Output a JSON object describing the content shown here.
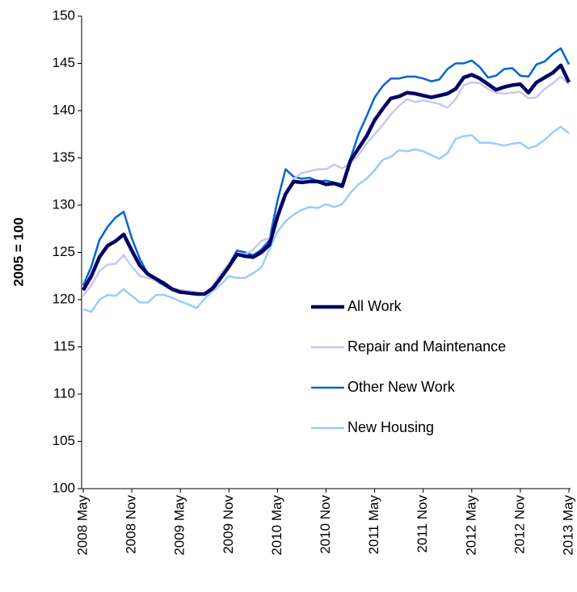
{
  "chart_data": {
    "type": "line",
    "y_label": "2005 = 100",
    "categories": [
      "2008 May",
      null,
      null,
      null,
      null,
      null,
      "2008 Nov",
      null,
      null,
      null,
      null,
      null,
      "2009 May",
      null,
      null,
      null,
      null,
      null,
      "2009 Nov",
      null,
      null,
      null,
      null,
      null,
      "2010 May",
      null,
      null,
      null,
      null,
      null,
      "2010 Nov",
      null,
      null,
      null,
      null,
      null,
      "2011 May",
      null,
      null,
      null,
      null,
      null,
      "2011 Nov",
      null,
      null,
      null,
      null,
      null,
      "2012 May",
      null,
      null,
      null,
      null,
      null,
      "2012 Nov",
      null,
      null,
      null,
      null,
      null,
      "2013 May"
    ],
    "series": [
      {
        "name": "All Work",
        "color": "#000066",
        "values": [
          121,
          122.5,
          124.5,
          125.7,
          126.2,
          126.9,
          125.2,
          123.6,
          122.7,
          122.2,
          121.7,
          121.1,
          120.8,
          120.7,
          120.6,
          120.6,
          121.2,
          122.3,
          123.5,
          124.8,
          124.6,
          124.5,
          125.0,
          125.8,
          128.8,
          131.2,
          132.5,
          132.4,
          132.5,
          132.5,
          132.2,
          132.3,
          132.0,
          134.7,
          136.0,
          137.3,
          139.0,
          140.2,
          141.3,
          141.5,
          141.9,
          141.8,
          141.6,
          141.4,
          141.6,
          141.8,
          142.3,
          143.5,
          143.8,
          143.4,
          142.8,
          142.2,
          142.5,
          142.7,
          142.8,
          141.9,
          143.0,
          143.5,
          144.0,
          144.8,
          143.0
        ]
      },
      {
        "name": "Repair and Maintenance",
        "color": "#c8c8f0",
        "values": [
          120.4,
          121.5,
          123.0,
          123.7,
          123.8,
          124.7,
          123.5,
          122.5,
          122.3,
          122.0,
          121.7,
          121.2,
          121.0,
          120.9,
          120.8,
          120.5,
          121.5,
          122.8,
          123.8,
          124.7,
          124.8,
          125.3,
          126.2,
          126.5,
          128.5,
          131.0,
          132.8,
          133.4,
          133.6,
          133.8,
          133.8,
          134.3,
          133.9,
          134.4,
          135.3,
          136.5,
          137.5,
          138.5,
          139.6,
          140.5,
          141.2,
          140.9,
          141.1,
          140.9,
          140.7,
          140.3,
          141.2,
          142.7,
          143.0,
          142.9,
          142.3,
          141.9,
          141.8,
          141.9,
          142.0,
          141.3,
          141.4,
          142.3,
          142.9,
          143.6,
          142.8
        ]
      },
      {
        "name": "Other New Work",
        "color": "#0066cc",
        "values": [
          121.5,
          123.5,
          126.3,
          127.7,
          128.7,
          129.3,
          126.5,
          124.3,
          122.7,
          122.0,
          121.5,
          121.0,
          120.7,
          120.7,
          120.6,
          120.6,
          121.3,
          122.5,
          123.7,
          125.2,
          125.0,
          124.7,
          125.3,
          126.3,
          130.5,
          133.8,
          133.0,
          132.8,
          132.9,
          132.5,
          132.6,
          132.4,
          132.2,
          134.9,
          137.5,
          139.4,
          141.4,
          142.6,
          143.4,
          143.4,
          143.6,
          143.6,
          143.4,
          143.1,
          143.3,
          144.4,
          145.0,
          145.0,
          145.3,
          144.6,
          143.5,
          143.7,
          144.4,
          144.5,
          143.7,
          143.6,
          144.9,
          145.2,
          146.0,
          146.6,
          144.9
        ]
      },
      {
        "name": "New Housing",
        "color": "#99ccff",
        "values": [
          119.0,
          118.7,
          120.0,
          120.5,
          120.4,
          121.1,
          120.4,
          119.7,
          119.7,
          120.5,
          120.5,
          120.2,
          119.8,
          119.5,
          119.1,
          120.1,
          120.9,
          121.6,
          122.5,
          122.3,
          122.3,
          122.8,
          123.4,
          125.3,
          127.2,
          128.3,
          129.0,
          129.5,
          129.8,
          129.7,
          130.1,
          129.8,
          130.1,
          131.3,
          132.2,
          132.8,
          133.7,
          134.8,
          135.1,
          135.8,
          135.7,
          135.9,
          135.7,
          135.3,
          134.9,
          135.5,
          137.0,
          137.3,
          137.4,
          136.6,
          136.6,
          136.5,
          136.3,
          136.5,
          136.6,
          136.0,
          136.3,
          136.9,
          137.7,
          138.3,
          137.6
        ]
      }
    ],
    "ylim": [
      100,
      150
    ],
    "yticks": [
      100,
      105,
      110,
      115,
      120,
      125,
      130,
      135,
      140,
      145,
      150
    ],
    "grid": false
  }
}
